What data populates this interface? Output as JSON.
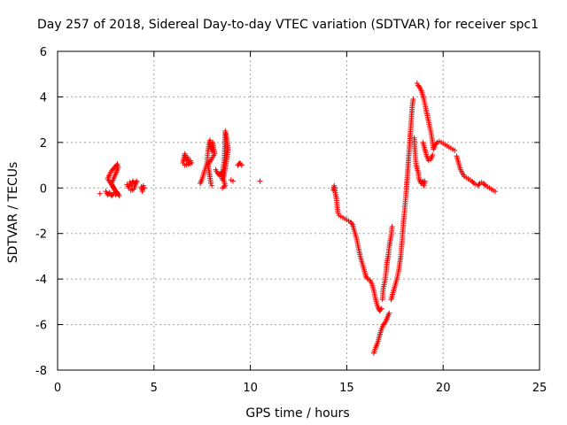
{
  "chart_data": {
    "type": "scatter",
    "title": "Day 257 of 2018, Sidereal Day-to-day VTEC variation (SDTVAR) for receiver spc1",
    "xlabel": "GPS time / hours",
    "ylabel": "SDTVAR / TECUs",
    "xlim": [
      0,
      25
    ],
    "ylim": [
      -8,
      6
    ],
    "xticks": [
      0,
      5,
      10,
      15,
      20,
      25
    ],
    "yticks": [
      -8,
      -6,
      -4,
      -2,
      0,
      2,
      4,
      6
    ],
    "xtick_labels": [
      "0",
      "5",
      "10",
      "15",
      "20",
      "25"
    ],
    "ytick_labels": [
      "-8",
      "-6",
      "-4",
      "-2",
      "0",
      "2",
      "4",
      "6"
    ],
    "grid": true,
    "marker": "+",
    "color": "#ff0000",
    "point_groups": [
      [
        [
          2.2,
          -0.25
        ]
      ],
      [
        [
          2.5,
          -0.15
        ],
        [
          2.6,
          -0.3
        ],
        [
          2.7,
          -0.2
        ],
        [
          2.8,
          -0.35
        ],
        [
          2.9,
          -0.25
        ],
        [
          3.0,
          -0.3
        ],
        [
          3.1,
          -0.2
        ],
        [
          3.2,
          -0.35
        ],
        [
          2.6,
          0.4
        ],
        [
          2.7,
          0.6
        ],
        [
          2.8,
          0.75
        ],
        [
          2.9,
          0.85
        ],
        [
          3.0,
          0.95
        ],
        [
          3.1,
          1.05
        ],
        [
          3.15,
          0.9
        ],
        [
          2.8,
          0.2
        ],
        [
          2.95,
          -0.1
        ]
      ],
      [
        [
          3.6,
          0.15
        ],
        [
          3.7,
          0.0
        ],
        [
          3.75,
          0.25
        ],
        [
          3.85,
          0.1
        ],
        [
          3.9,
          0.3
        ],
        [
          4.0,
          0.2
        ],
        [
          4.1,
          0.3
        ],
        [
          3.95,
          -0.05
        ],
        [
          3.8,
          -0.1
        ]
      ],
      [
        [
          4.35,
          0.05
        ],
        [
          4.4,
          -0.15
        ],
        [
          4.45,
          0.1
        ],
        [
          4.5,
          0.0
        ]
      ],
      [
        [
          6.5,
          1.1
        ],
        [
          6.55,
          1.3
        ],
        [
          6.6,
          1.5
        ],
        [
          6.7,
          1.2
        ],
        [
          6.75,
          1.35
        ],
        [
          6.85,
          1.05
        ],
        [
          6.9,
          1.2
        ],
        [
          6.95,
          1.1
        ],
        [
          6.6,
          1.0
        ]
      ],
      [
        [
          7.4,
          0.2
        ],
        [
          7.5,
          0.4
        ],
        [
          7.6,
          0.7
        ],
        [
          7.7,
          0.95
        ],
        [
          7.75,
          1.1
        ],
        [
          7.8,
          1.6
        ],
        [
          7.85,
          1.9
        ],
        [
          7.9,
          2.1
        ],
        [
          7.95,
          1.8
        ],
        [
          8.0,
          1.6
        ],
        [
          8.05,
          2.0
        ],
        [
          8.1,
          1.7
        ],
        [
          8.15,
          1.5
        ],
        [
          7.8,
          1.0
        ],
        [
          7.9,
          0.5
        ],
        [
          7.95,
          0.2
        ],
        [
          8.0,
          0.1
        ]
      ],
      [
        [
          8.2,
          0.8
        ],
        [
          8.3,
          0.65
        ],
        [
          8.4,
          0.55
        ],
        [
          8.5,
          0.7
        ],
        [
          8.55,
          0.35
        ],
        [
          8.6,
          0.9
        ],
        [
          8.65,
          1.2
        ],
        [
          8.7,
          2.5
        ],
        [
          8.75,
          2.3
        ],
        [
          8.8,
          2.0
        ],
        [
          8.85,
          1.7
        ],
        [
          8.6,
          0.4
        ],
        [
          8.7,
          0.1
        ],
        [
          8.55,
          0.0
        ]
      ],
      [
        [
          9.0,
          0.35
        ],
        [
          9.1,
          0.3
        ]
      ],
      [
        [
          9.35,
          1.0
        ],
        [
          9.45,
          1.1
        ],
        [
          9.55,
          1.0
        ]
      ],
      [
        [
          10.5,
          0.3
        ]
      ],
      [
        [
          14.3,
          -0.1
        ],
        [
          14.35,
          0.1
        ],
        [
          14.4,
          -0.2
        ],
        [
          14.45,
          -0.4
        ],
        [
          14.5,
          -0.8
        ],
        [
          14.55,
          -1.1
        ],
        [
          14.6,
          -1.2
        ],
        [
          14.7,
          -1.25
        ],
        [
          14.8,
          -1.3
        ],
        [
          14.9,
          -1.35
        ],
        [
          15.0,
          -1.4
        ],
        [
          15.1,
          -1.45
        ],
        [
          15.2,
          -1.5
        ],
        [
          15.3,
          -1.6
        ],
        [
          15.4,
          -1.9
        ],
        [
          15.5,
          -2.2
        ],
        [
          15.6,
          -2.6
        ],
        [
          15.7,
          -3.0
        ],
        [
          15.8,
          -3.3
        ],
        [
          15.9,
          -3.6
        ],
        [
          16.0,
          -3.9
        ],
        [
          16.1,
          -4.0
        ],
        [
          16.2,
          -4.05
        ],
        [
          16.3,
          -4.2
        ],
        [
          16.4,
          -4.5
        ],
        [
          16.5,
          -4.9
        ],
        [
          16.6,
          -5.2
        ],
        [
          16.7,
          -5.4
        ],
        [
          16.8,
          -5.3
        ]
      ],
      [
        [
          16.4,
          -7.25
        ],
        [
          16.5,
          -7.0
        ],
        [
          16.6,
          -6.8
        ],
        [
          16.7,
          -6.5
        ],
        [
          16.8,
          -6.2
        ],
        [
          16.9,
          -6.0
        ],
        [
          17.0,
          -5.9
        ],
        [
          17.1,
          -5.7
        ],
        [
          17.2,
          -5.5
        ]
      ],
      [
        [
          16.85,
          -4.9
        ],
        [
          16.9,
          -4.4
        ],
        [
          17.0,
          -4.0
        ],
        [
          17.05,
          -3.6
        ],
        [
          17.1,
          -3.2
        ],
        [
          17.15,
          -3.0
        ],
        [
          17.2,
          -2.6
        ],
        [
          17.3,
          -2.1
        ],
        [
          17.35,
          -1.7
        ]
      ],
      [
        [
          17.3,
          -4.9
        ],
        [
          17.4,
          -4.6
        ],
        [
          17.5,
          -4.3
        ],
        [
          17.6,
          -4.0
        ],
        [
          17.7,
          -3.6
        ],
        [
          17.8,
          -3.0
        ],
        [
          17.85,
          -2.5
        ],
        [
          17.9,
          -2.0
        ],
        [
          17.95,
          -1.4
        ],
        [
          18.0,
          -1.0
        ],
        [
          18.05,
          -0.5
        ],
        [
          18.1,
          0.0
        ],
        [
          18.15,
          0.6
        ],
        [
          18.2,
          1.2
        ],
        [
          18.25,
          1.8
        ],
        [
          18.3,
          2.4
        ],
        [
          18.35,
          3.0
        ],
        [
          18.4,
          3.6
        ],
        [
          18.45,
          3.9
        ]
      ],
      [
        [
          18.5,
          2.2
        ],
        [
          18.55,
          1.5
        ],
        [
          18.6,
          1.0
        ],
        [
          18.7,
          0.7
        ],
        [
          18.75,
          0.4
        ],
        [
          18.85,
          0.2
        ],
        [
          18.95,
          0.3
        ],
        [
          19.0,
          0.1
        ],
        [
          19.05,
          0.3
        ]
      ],
      [
        [
          18.65,
          4.6
        ],
        [
          18.7,
          4.5
        ],
        [
          18.8,
          4.4
        ],
        [
          18.9,
          4.2
        ],
        [
          19.0,
          3.9
        ],
        [
          19.1,
          3.5
        ],
        [
          19.2,
          3.1
        ],
        [
          19.3,
          2.7
        ],
        [
          19.4,
          2.3
        ],
        [
          19.45,
          2.0
        ],
        [
          19.5,
          1.7
        ],
        [
          19.6,
          1.9
        ],
        [
          19.7,
          2.0
        ],
        [
          19.8,
          2.05
        ],
        [
          19.9,
          2.0
        ],
        [
          20.0,
          1.95
        ],
        [
          20.1,
          1.9
        ],
        [
          20.2,
          1.85
        ],
        [
          20.3,
          1.8
        ],
        [
          20.4,
          1.75
        ],
        [
          20.5,
          1.7
        ],
        [
          20.6,
          1.65
        ]
      ],
      [
        [
          18.95,
          2.0
        ],
        [
          19.05,
          1.7
        ],
        [
          19.15,
          1.4
        ],
        [
          19.25,
          1.2
        ],
        [
          19.35,
          1.25
        ],
        [
          19.45,
          1.45
        ]
      ],
      [
        [
          20.7,
          1.4
        ],
        [
          20.8,
          1.1
        ],
        [
          20.9,
          0.8
        ],
        [
          21.0,
          0.65
        ],
        [
          21.1,
          0.5
        ],
        [
          21.2,
          0.45
        ],
        [
          21.3,
          0.4
        ],
        [
          21.4,
          0.35
        ],
        [
          21.5,
          0.3
        ],
        [
          21.6,
          0.2
        ],
        [
          21.7,
          0.15
        ],
        [
          21.8,
          0.1
        ],
        [
          21.9,
          0.2
        ],
        [
          22.0,
          0.25
        ],
        [
          22.1,
          0.2
        ],
        [
          22.2,
          0.1
        ],
        [
          22.3,
          0.05
        ],
        [
          22.4,
          0.0
        ],
        [
          22.5,
          -0.05
        ],
        [
          22.6,
          -0.1
        ],
        [
          22.7,
          -0.15
        ]
      ]
    ]
  }
}
